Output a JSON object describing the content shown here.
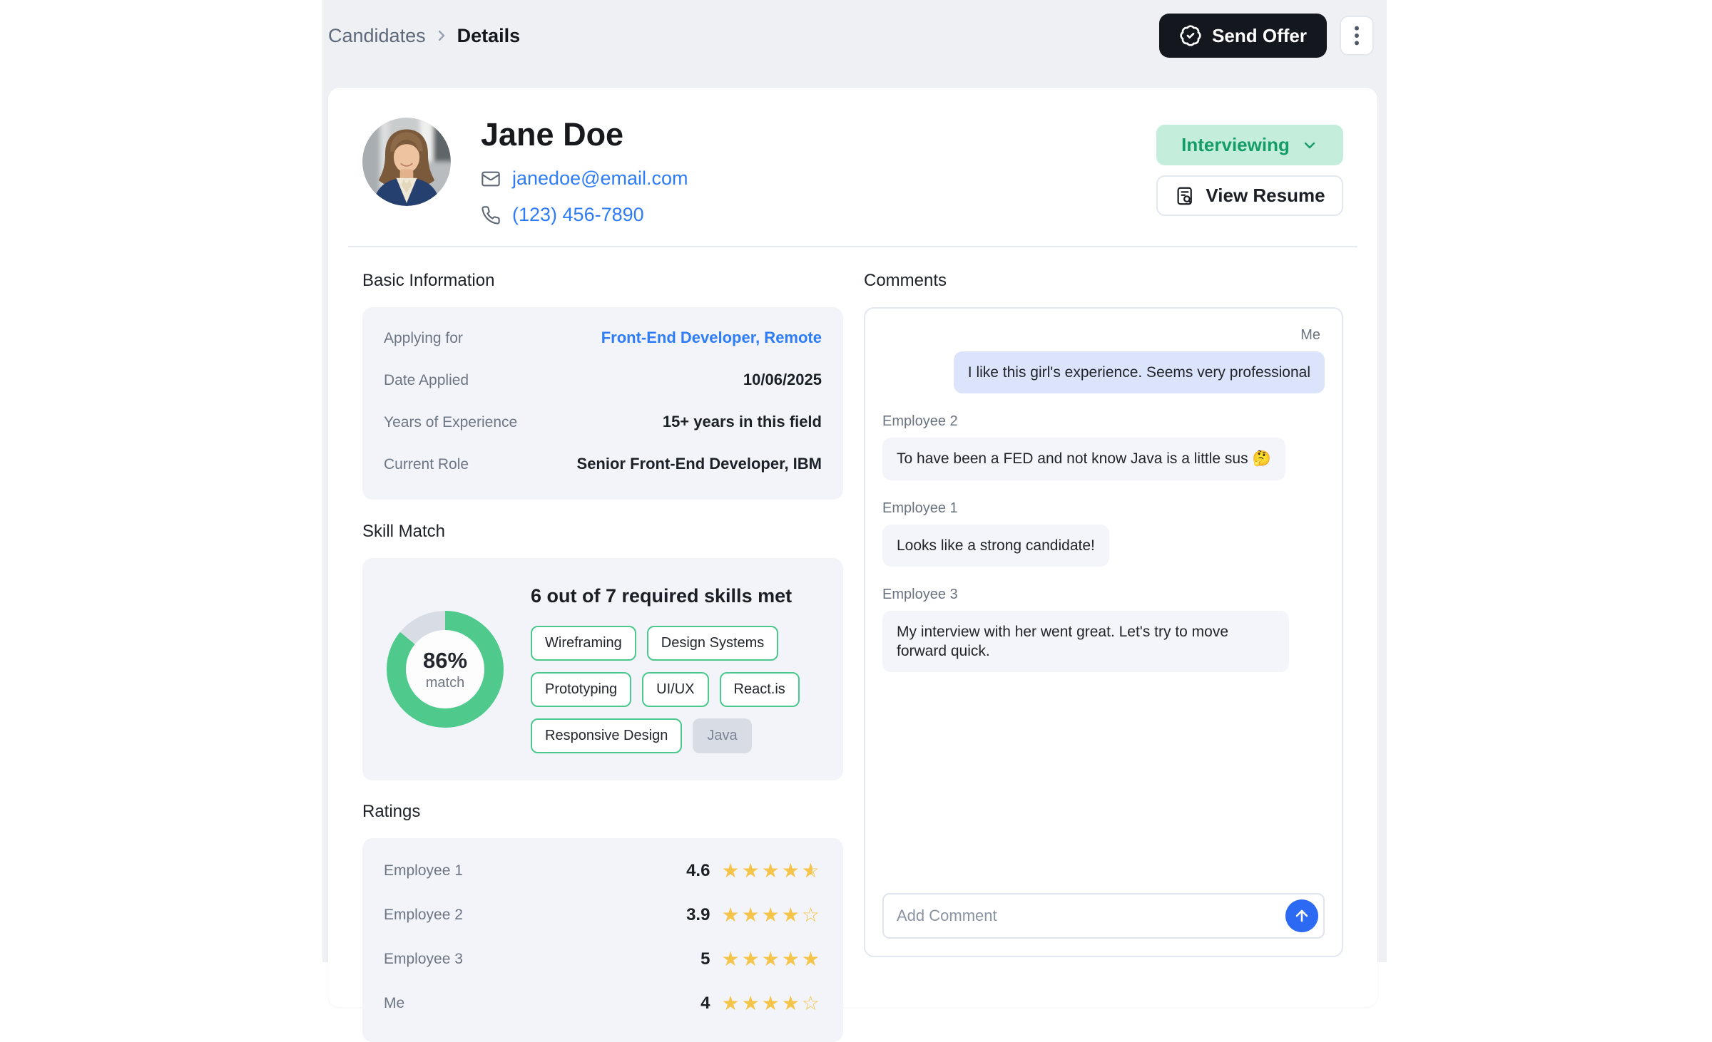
{
  "colors": {
    "app_bg": "#eef0f4",
    "accent_green": "#4fca8c",
    "status_bg": "#c4eedb",
    "status_text": "#159d68",
    "link_blue": "#2e7cf6",
    "star_yellow": "#f5c54b",
    "send_button_blue": "#2d6af3",
    "dark_button": "#14171d"
  },
  "header": {
    "breadcrumb": {
      "parent": "Candidates",
      "current": "Details"
    },
    "send_offer_label": "Send Offer",
    "icons": {
      "send_offer": "badge-check-icon",
      "menu": "vertical-dots-icon",
      "separator": "chevron-right-icon"
    }
  },
  "profile": {
    "name": "Jane Doe",
    "email": "janedoe@email.com",
    "phone": "(123) 456-7890",
    "status_label": "Interviewing",
    "view_resume_label": "View Resume",
    "icons": {
      "email": "mail-icon",
      "phone": "phone-icon",
      "status": "chevron-down-icon",
      "resume": "file-search-icon"
    }
  },
  "basic_info": {
    "title": "Basic Information",
    "rows": [
      {
        "label": "Applying for",
        "value": "Front-End Developer, Remote"
      },
      {
        "label": "Date Applied",
        "value": "10/06/2025"
      },
      {
        "label": "Years of Experience",
        "value": "15+ years in this field"
      },
      {
        "label": "Current Role",
        "value": "Senior Front-End Developer, IBM"
      }
    ]
  },
  "skill_match": {
    "title": "Skill Match",
    "headline": "6 out of 7 required skills met",
    "center_primary": "86%",
    "center_secondary": "match",
    "skills": [
      {
        "label": "Wireframing",
        "met": true
      },
      {
        "label": "Design Systems",
        "met": true
      },
      {
        "label": "Prototyping",
        "met": true
      },
      {
        "label": "UI/UX",
        "met": true
      },
      {
        "label": "React.is",
        "met": true
      },
      {
        "label": "Responsive Design",
        "met": true
      },
      {
        "label": "Java",
        "met": false
      }
    ]
  },
  "chart_data": {
    "type": "pie",
    "variant": "donut",
    "title": "Skill Match",
    "center_label": "86% match",
    "segments": [
      {
        "name": "matched",
        "value": 86,
        "color": "#4fca8c"
      },
      {
        "name": "remaining",
        "value": 14,
        "color": "#d8dce4"
      }
    ],
    "annotation": "6 out of 7 required skills met"
  },
  "ratings": {
    "title": "Ratings",
    "rows": [
      {
        "label": "Employee 1",
        "score": "4.6",
        "stars": 4.5
      },
      {
        "label": "Employee 2",
        "score": "3.9",
        "stars": 4
      },
      {
        "label": "Employee 3",
        "score": "5",
        "stars": 5
      },
      {
        "label": "Me",
        "score": "4",
        "stars": 4
      }
    ]
  },
  "comments": {
    "title": "Comments",
    "messages": [
      {
        "author": "Me",
        "text": "I like this girl's experience. Seems very professional",
        "align": "right"
      },
      {
        "author": "Employee 2",
        "text": "To have been a FED and not know Java is a little sus 🤔",
        "align": "left"
      },
      {
        "author": "Employee 1",
        "text": "Looks like a strong candidate!",
        "align": "left"
      },
      {
        "author": "Employee 3",
        "text": "My interview with her went great. Let's try to move forward quick.",
        "align": "left"
      }
    ],
    "input_placeholder": "Add Comment",
    "icons": {
      "send": "arrow-up-icon"
    }
  }
}
